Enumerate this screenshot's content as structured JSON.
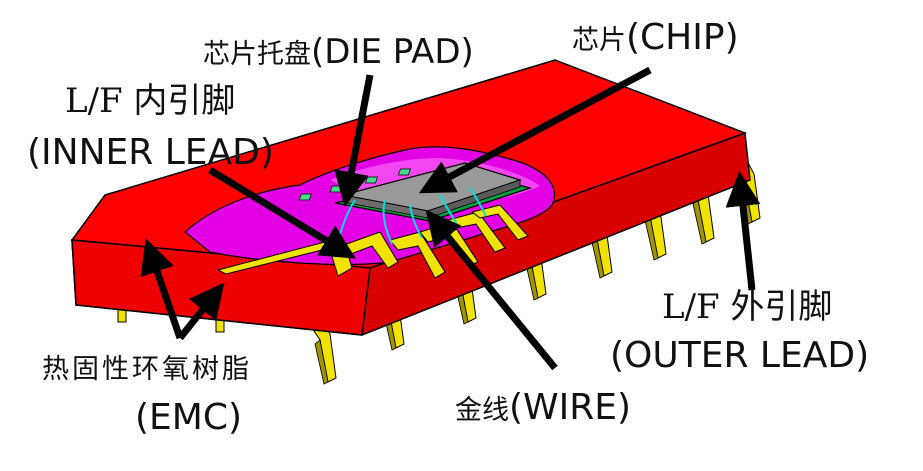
{
  "labels": {
    "die_pad": {
      "zh": "芯片托盘",
      "en": "(DIE PAD)"
    },
    "chip": {
      "zh": "芯片",
      "en": "(CHIP)"
    },
    "inner_lead": {
      "zh": "L/F 内引脚",
      "en": "(INNER LEAD)"
    },
    "emc": {
      "zh": "热固性环氧树脂",
      "en": "(EMC)"
    },
    "wire": {
      "zh": "金线",
      "en": "(WIRE)"
    },
    "outer_lead": {
      "zh": "L/F 外引脚",
      "en": "(OUTER LEAD)"
    }
  },
  "colors": {
    "body": "#ff0000",
    "body_dark": "#d80000",
    "cavity": "#e400e4",
    "cavity_light": "#ff80ff",
    "lead": "#f2e200",
    "lead_dark": "#a09400",
    "chip": "#9a9a9a",
    "pad": "#44dd88",
    "wire": "#00e0e0",
    "arrow": "#000000"
  }
}
